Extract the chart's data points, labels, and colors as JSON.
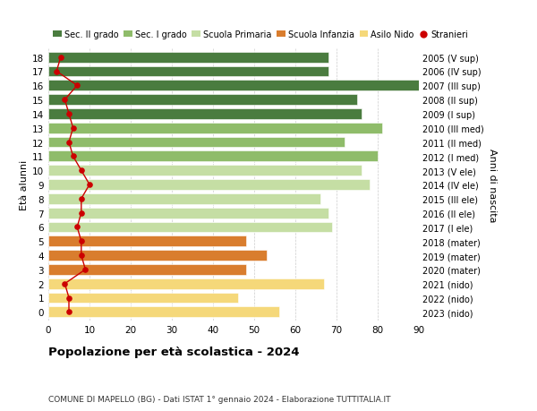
{
  "ages": [
    18,
    17,
    16,
    15,
    14,
    13,
    12,
    11,
    10,
    9,
    8,
    7,
    6,
    5,
    4,
    3,
    2,
    1,
    0
  ],
  "years": [
    "2005 (V sup)",
    "2006 (IV sup)",
    "2007 (III sup)",
    "2008 (II sup)",
    "2009 (I sup)",
    "2010 (III med)",
    "2011 (II med)",
    "2012 (I med)",
    "2013 (V ele)",
    "2014 (IV ele)",
    "2015 (III ele)",
    "2016 (II ele)",
    "2017 (I ele)",
    "2018 (mater)",
    "2019 (mater)",
    "2020 (mater)",
    "2021 (nido)",
    "2022 (nido)",
    "2023 (nido)"
  ],
  "bar_values": [
    68,
    68,
    90,
    75,
    76,
    81,
    72,
    80,
    76,
    78,
    66,
    68,
    69,
    48,
    53,
    48,
    67,
    46,
    56
  ],
  "bar_colors": [
    "#4a7c3f",
    "#4a7c3f",
    "#4a7c3f",
    "#4a7c3f",
    "#4a7c3f",
    "#8fbc6a",
    "#8fbc6a",
    "#8fbc6a",
    "#c5dea4",
    "#c5dea4",
    "#c5dea4",
    "#c5dea4",
    "#c5dea4",
    "#d97d2e",
    "#d97d2e",
    "#d97d2e",
    "#f5d87a",
    "#f5d87a",
    "#f5d87a"
  ],
  "stranieri": [
    3,
    2,
    7,
    4,
    5,
    6,
    5,
    6,
    8,
    10,
    8,
    8,
    7,
    8,
    8,
    9,
    4,
    5,
    5
  ],
  "stranieri_color": "#cc0000",
  "ylabel_left": "Età alunni",
  "ylabel_right": "Anni di nascita",
  "xlim": [
    0,
    90
  ],
  "xticks": [
    0,
    10,
    20,
    30,
    40,
    50,
    60,
    70,
    80,
    90
  ],
  "title": "Popolazione per età scolastica - 2024",
  "subtitle": "COMUNE DI MAPELLO (BG) - Dati ISTAT 1° gennaio 2024 - Elaborazione TUTTITALIA.IT",
  "legend_labels": [
    "Sec. II grado",
    "Sec. I grado",
    "Scuola Primaria",
    "Scuola Infanzia",
    "Asilo Nido",
    "Stranieri"
  ],
  "legend_colors": [
    "#4a7c3f",
    "#8fbc6a",
    "#c5dea4",
    "#d97d2e",
    "#f5d87a",
    "#cc0000"
  ],
  "bg_color": "#ffffff",
  "bar_height": 0.75,
  "grid_color": "#cccccc"
}
